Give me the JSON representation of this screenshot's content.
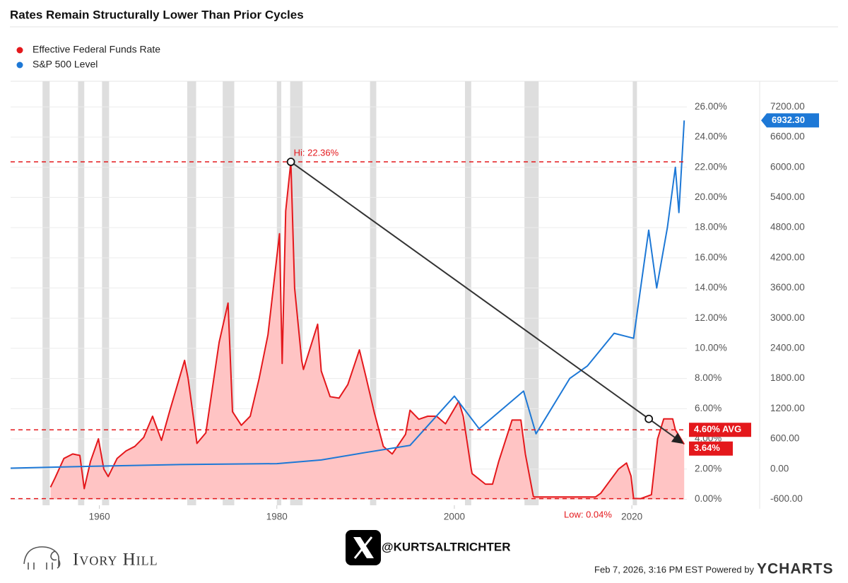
{
  "chart_data": {
    "type": "line",
    "title": "Rates Remain Structurally Lower Than Prior Cycles",
    "legend": "top-left",
    "grid": true,
    "series": [
      {
        "name": "Effective Federal Funds Rate",
        "color": "#e4181c",
        "fill": "#ffc4c4",
        "x": [
          1954.5,
          1955,
          1956,
          1957,
          1957.8,
          1958.3,
          1959,
          1959.9,
          1960.5,
          1961,
          1962,
          1963,
          1964,
          1965,
          1966,
          1967,
          1968,
          1969.6,
          1970,
          1971,
          1972,
          1973.5,
          1974.5,
          1975,
          1976,
          1977,
          1978,
          1979,
          1980.3,
          1980.6,
          1981,
          1981.58,
          1982,
          1982.8,
          1983,
          1984.6,
          1985,
          1986,
          1987,
          1988,
          1989.3,
          1990,
          1991,
          1992,
          1993,
          1994.5,
          1995,
          1996,
          1997,
          1998,
          1999,
          2000.5,
          2001,
          2001.9,
          2002,
          2003.5,
          2004.3,
          2005,
          2006.5,
          2007.5,
          2008,
          2008.9,
          2009,
          2012,
          2015.9,
          2016.5,
          2017.5,
          2018.5,
          2019.4,
          2019.9,
          2020.2,
          2021,
          2022.2,
          2022.9,
          2023.6,
          2024.6,
          2024.9,
          2025.9
        ],
        "values": [
          0.8,
          1.4,
          2.7,
          3.0,
          2.9,
          0.7,
          2.5,
          4.0,
          2.0,
          1.5,
          2.7,
          3.2,
          3.5,
          4.1,
          5.5,
          3.9,
          6.0,
          9.2,
          8.0,
          3.7,
          4.4,
          10.4,
          13.0,
          5.8,
          4.9,
          5.5,
          8.0,
          10.9,
          17.6,
          9.0,
          19.1,
          22.36,
          14.0,
          9.2,
          8.6,
          11.6,
          8.5,
          6.8,
          6.7,
          7.6,
          9.9,
          8.2,
          5.7,
          3.5,
          3.0,
          4.3,
          5.9,
          5.3,
          5.5,
          5.5,
          5.0,
          6.5,
          5.5,
          2.0,
          1.7,
          1.0,
          1.0,
          2.5,
          5.25,
          5.25,
          3.0,
          0.2,
          0.15,
          0.15,
          0.15,
          0.4,
          1.2,
          2.0,
          2.4,
          1.55,
          0.05,
          0.04,
          0.3,
          4.0,
          5.33,
          5.33,
          4.6,
          3.64
        ]
      },
      {
        "name": "S&P 500 Level",
        "color": "#1d78d6",
        "axis": "y2",
        "x": [
          1950,
          1960,
          1970,
          1980,
          1985,
          1990,
          1995,
          2000,
          2002.8,
          2007.8,
          2009.2,
          2013,
          2015,
          2018,
          2020.2,
          2021.9,
          2022.8,
          2024,
          2024.9,
          2025.3,
          2025.9
        ],
        "values": [
          17,
          58,
          92,
          107,
          180,
          330,
          470,
          1450,
          800,
          1550,
          700,
          1800,
          2050,
          2700,
          2600,
          4750,
          3600,
          4800,
          6000,
          5100,
          6932.3
        ]
      }
    ],
    "xlim": [
      1950,
      2026.2
    ],
    "xticks": [
      1960,
      1980,
      2000,
      2020
    ],
    "ylim": [
      -0.4,
      27.7
    ],
    "yticks": [
      {
        "value": 0,
        "label": "0.00%"
      },
      {
        "value": 2,
        "label": "2.00%"
      },
      {
        "value": 4,
        "label": "4.00%"
      },
      {
        "value": 6,
        "label": "6.00%"
      },
      {
        "value": 8,
        "label": "8.00%"
      },
      {
        "value": 10,
        "label": "10.00%"
      },
      {
        "value": 12,
        "label": "12.00%"
      },
      {
        "value": 14,
        "label": "14.00%"
      },
      {
        "value": 16,
        "label": "16.00%"
      },
      {
        "value": 18,
        "label": "18.00%"
      },
      {
        "value": 20,
        "label": "20.00%"
      },
      {
        "value": 22,
        "label": "22.00%"
      },
      {
        "value": 24,
        "label": "24.00%"
      },
      {
        "value": 26,
        "label": "26.00%"
      }
    ],
    "y2lim": [
      -720,
      7710
    ],
    "y2ticks": [
      {
        "value": -600,
        "label": "-600.00"
      },
      {
        "value": 0,
        "label": "0.00"
      },
      {
        "value": 600,
        "label": "600.00"
      },
      {
        "value": 1200,
        "label": "1200.00"
      },
      {
        "value": 1800,
        "label": "1800.00"
      },
      {
        "value": 2400,
        "label": "2400.00"
      },
      {
        "value": 3000,
        "label": "3000.00"
      },
      {
        "value": 3600,
        "label": "3600.00"
      },
      {
        "value": 4200,
        "label": "4200.00"
      },
      {
        "value": 4800,
        "label": "4800.00"
      },
      {
        "value": 5400,
        "label": "5400.00"
      },
      {
        "value": 6000,
        "label": "6000.00"
      },
      {
        "value": 6600,
        "label": "6600.00"
      },
      {
        "value": 7200,
        "label": "7200.00"
      }
    ],
    "recessions": [
      [
        1953.6,
        1954.4
      ],
      [
        1957.6,
        1958.3
      ],
      [
        1960.3,
        1961.1
      ],
      [
        1969.9,
        1970.9
      ],
      [
        1973.9,
        1975.2
      ],
      [
        1980.0,
        1980.5
      ],
      [
        1981.5,
        1982.9
      ],
      [
        1990.5,
        1991.2
      ],
      [
        2001.2,
        2001.9
      ],
      [
        2007.9,
        2009.5
      ],
      [
        2020.1,
        2020.4
      ]
    ],
    "annotations": {
      "high": {
        "x": 1981.58,
        "value": 22.36,
        "label": "Hi: 22.36%"
      },
      "low": {
        "value": 0.04,
        "label": "Low: 0.04%"
      },
      "average": {
        "value": 4.6,
        "label": "4.60% AVG"
      },
      "last_rate": {
        "value": 3.64,
        "label": "3.64%"
      },
      "last_sp500": {
        "value": 6932.3,
        "label": "6932.30"
      }
    }
  },
  "footer": {
    "brand": "Ivory Hill",
    "handle": "@KURTSALTRICHTER",
    "timestamp": "Feb 7, 2026, 3:16 PM EST Powered by",
    "provider": "YCHARTS"
  }
}
